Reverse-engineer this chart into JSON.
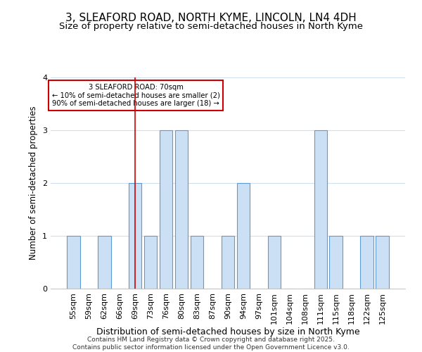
{
  "title1": "3, SLEAFORD ROAD, NORTH KYME, LINCOLN, LN4 4DH",
  "title2": "Size of property relative to semi-detached houses in North Kyme",
  "xlabel": "Distribution of semi-detached houses by size in North Kyme",
  "ylabel": "Number of semi-detached properties",
  "categories": [
    "55sqm",
    "59sqm",
    "62sqm",
    "66sqm",
    "69sqm",
    "73sqm",
    "76sqm",
    "80sqm",
    "83sqm",
    "87sqm",
    "90sqm",
    "94sqm",
    "97sqm",
    "101sqm",
    "104sqm",
    "108sqm",
    "111sqm",
    "115sqm",
    "118sqm",
    "122sqm",
    "125sqm"
  ],
  "values": [
    1,
    0,
    1,
    0,
    2,
    1,
    3,
    3,
    1,
    0,
    1,
    2,
    0,
    1,
    0,
    0,
    3,
    1,
    0,
    1,
    1
  ],
  "bar_color": "#cce0f5",
  "bar_edge_color": "#5b9bd5",
  "highlight_index": 4,
  "highlight_line_color": "#cc0000",
  "annotation_line1": "3 SLEAFORD ROAD: 70sqm",
  "annotation_line2": "← 10% of semi-detached houses are smaller (2)",
  "annotation_line3": "90% of semi-detached houses are larger (18) →",
  "annotation_box_color": "#cc0000",
  "ylim": [
    0,
    4
  ],
  "yticks": [
    0,
    1,
    2,
    3,
    4
  ],
  "footer": "Contains HM Land Registry data © Crown copyright and database right 2025.\nContains public sector information licensed under the Open Government Licence v3.0.",
  "bg_color": "#ffffff",
  "plot_bg_color": "#ffffff",
  "grid_color": "#d0dff0",
  "title1_fontsize": 11,
  "title2_fontsize": 9.5,
  "xlabel_fontsize": 9,
  "ylabel_fontsize": 8.5,
  "tick_fontsize": 8,
  "footer_fontsize": 6.5
}
